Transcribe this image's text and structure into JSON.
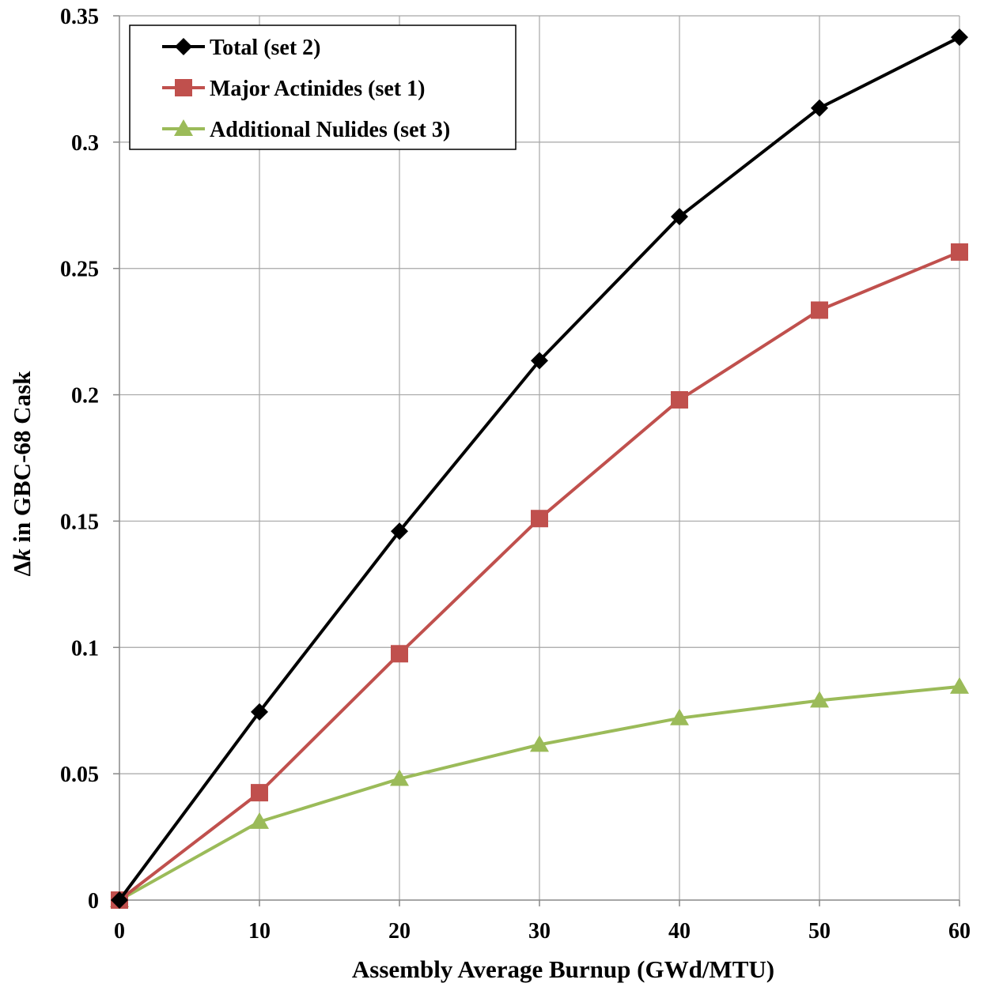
{
  "chart_data": {
    "type": "line",
    "title": "",
    "xlabel": "Assembly Average Burnup (GWd/MTU)",
    "ylabel_prefix": "Δ",
    "ylabel_var": "k",
    "ylabel_suffix": " in GBC-68 Cask",
    "xlim": [
      0,
      60
    ],
    "ylim": [
      0,
      0.35
    ],
    "x_ticks": [
      0,
      10,
      20,
      30,
      40,
      50,
      60
    ],
    "x_tick_labels": [
      "0",
      "10",
      "20",
      "30",
      "40",
      "50",
      "60"
    ],
    "y_ticks": [
      0,
      0.05,
      0.1,
      0.15,
      0.2,
      0.25,
      0.3,
      0.35
    ],
    "y_tick_labels": [
      "0",
      "0.05",
      "0.1",
      "0.15",
      "0.2",
      "0.25",
      "0.3",
      "0.35"
    ],
    "grid": true,
    "legend_position": "top-left",
    "x": [
      0,
      10,
      20,
      30,
      40,
      50,
      60
    ],
    "series": [
      {
        "name": "Total (set 2)",
        "color": "#000000",
        "marker": "diamond",
        "values": [
          0,
          0.0745,
          0.146,
          0.2135,
          0.2705,
          0.3135,
          0.3415
        ]
      },
      {
        "name": "Major Actinides (set 1)",
        "color": "#c0504d",
        "marker": "square",
        "values": [
          0,
          0.0425,
          0.0975,
          0.151,
          0.198,
          0.2335,
          0.2565
        ]
      },
      {
        "name": "Additional Nulides (set 3)",
        "color": "#9bbb59",
        "marker": "triangle",
        "values": [
          0,
          0.031,
          0.048,
          0.0615,
          0.072,
          0.079,
          0.0845
        ]
      }
    ]
  }
}
